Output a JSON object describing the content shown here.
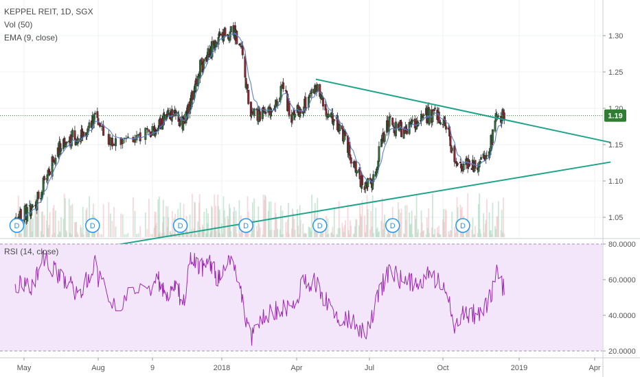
{
  "legend": {
    "symbol": "KEPPEL REIT, 1D, SGX",
    "volume": "Vol (50)",
    "ema": "EMA (9, close)",
    "rsi": "RSI (14, close)"
  },
  "current_price": "1.19",
  "colors": {
    "up": "#2f6b3a",
    "down": "#8b2431",
    "ema": "#5b7fd0",
    "trendline": "#1fa38a",
    "rsi_line": "#9c27b0",
    "rsi_band": "#f3e6fb",
    "price_tag": "#2e7d32",
    "dividend": "#2196f3"
  },
  "chart_data": [
    {
      "type": "candlestick",
      "x_tick_labels": [
        "May",
        "Aug",
        "9",
        "2018",
        "Apr",
        "Jul",
        "Oct",
        "2019",
        "Apr"
      ],
      "x_range": [
        "2017-04-18",
        "2019-04-20"
      ],
      "y_ticks": [
        "1.05",
        "1.10",
        "1.15",
        "1.20",
        "1.25",
        "1.30"
      ],
      "ylim": [
        1.01,
        1.345
      ],
      "last_price": 1.19,
      "price_path": [
        [
          "2017-04-20",
          1.05
        ],
        [
          "2017-05-10",
          1.06
        ],
        [
          "2017-05-20",
          1.08
        ],
        [
          "2017-06-10",
          1.14
        ],
        [
          "2017-06-25",
          1.16
        ],
        [
          "2017-07-15",
          1.16
        ],
        [
          "2017-07-27",
          1.19
        ],
        [
          "2017-08-08",
          1.15
        ],
        [
          "2017-08-20",
          1.16
        ],
        [
          "2017-09-05",
          1.17
        ],
        [
          "2017-09-15",
          1.18
        ],
        [
          "2017-10-05",
          1.19
        ],
        [
          "2017-10-25",
          1.18
        ],
        [
          "2017-11-05",
          1.2
        ],
        [
          "2017-11-20",
          1.25
        ],
        [
          "2017-12-05",
          1.27
        ],
        [
          "2017-12-20",
          1.29
        ],
        [
          "2018-01-05",
          1.3
        ],
        [
          "2018-01-15",
          1.31
        ],
        [
          "2018-01-25",
          1.28
        ],
        [
          "2018-02-05",
          1.19
        ],
        [
          "2018-02-20",
          1.19
        ],
        [
          "2018-03-05",
          1.2
        ],
        [
          "2018-03-15",
          1.23
        ],
        [
          "2018-03-25",
          1.19
        ],
        [
          "2018-04-05",
          1.2
        ],
        [
          "2018-04-15",
          1.21
        ],
        [
          "2018-04-25",
          1.23
        ],
        [
          "2018-05-05",
          1.2
        ],
        [
          "2018-05-20",
          1.18
        ],
        [
          "2018-06-01",
          1.16
        ],
        [
          "2018-06-12",
          1.12
        ],
        [
          "2018-06-25",
          1.09
        ],
        [
          "2018-07-05",
          1.1
        ],
        [
          "2018-07-15",
          1.15
        ],
        [
          "2018-07-25",
          1.18
        ],
        [
          "2018-08-10",
          1.17
        ],
        [
          "2018-08-25",
          1.18
        ],
        [
          "2018-09-10",
          1.19
        ],
        [
          "2018-09-25",
          1.19
        ],
        [
          "2018-10-05",
          1.18
        ],
        [
          "2018-10-15",
          1.13
        ],
        [
          "2018-10-25",
          1.12
        ],
        [
          "2018-11-05",
          1.12
        ],
        [
          "2018-11-15",
          1.12
        ],
        [
          "2018-11-25",
          1.14
        ],
        [
          "2018-12-05",
          1.19
        ],
        [
          "2018-12-15",
          1.19
        ]
      ],
      "trendlines": [
        {
          "from": [
            "2018-04-25",
            1.24
          ],
          "to": [
            "2019-04-20",
            1.153
          ]
        },
        {
          "from": [
            "2017-06-20",
            1.0
          ],
          "to": [
            "2019-04-20",
            1.126
          ]
        }
      ],
      "dividend_markers": {
        "label": "D",
        "dates": [
          "2017-04-22",
          "2017-07-25",
          "2017-10-20",
          "2018-01-30",
          "2018-04-30",
          "2018-07-30",
          "2018-10-25"
        ]
      }
    },
    {
      "type": "line",
      "title": "RSI (14, close)",
      "y_ticks": [
        "20.0000",
        "40.0000",
        "60.0000",
        "80.0000"
      ],
      "ylim": [
        18,
        82
      ],
      "band": [
        20,
        80
      ],
      "path": [
        [
          "2017-04-20",
          58
        ],
        [
          "2017-05-10",
          55
        ],
        [
          "2017-05-25",
          73
        ],
        [
          "2017-06-10",
          65
        ],
        [
          "2017-06-25",
          57
        ],
        [
          "2017-07-10",
          52
        ],
        [
          "2017-07-27",
          70
        ],
        [
          "2017-08-10",
          45
        ],
        [
          "2017-08-25",
          55
        ],
        [
          "2017-09-10",
          60
        ],
        [
          "2017-09-25",
          52
        ],
        [
          "2017-10-10",
          57
        ],
        [
          "2017-10-25",
          48
        ],
        [
          "2017-11-10",
          75
        ],
        [
          "2017-11-25",
          67
        ],
        [
          "2017-12-10",
          70
        ],
        [
          "2017-12-25",
          60
        ],
        [
          "2018-01-10",
          76
        ],
        [
          "2018-01-25",
          50
        ],
        [
          "2018-02-05",
          26
        ],
        [
          "2018-02-20",
          40
        ],
        [
          "2018-03-05",
          42
        ],
        [
          "2018-03-25",
          45
        ],
        [
          "2018-04-10",
          58
        ],
        [
          "2018-04-25",
          58
        ],
        [
          "2018-05-10",
          46
        ],
        [
          "2018-05-25",
          40
        ],
        [
          "2018-06-10",
          38
        ],
        [
          "2018-06-25",
          30
        ],
        [
          "2018-07-05",
          40
        ],
        [
          "2018-07-15",
          55
        ],
        [
          "2018-07-25",
          65
        ],
        [
          "2018-08-10",
          60
        ],
        [
          "2018-08-25",
          58
        ],
        [
          "2018-09-10",
          62
        ],
        [
          "2018-09-25",
          58
        ],
        [
          "2018-10-05",
          55
        ],
        [
          "2018-10-15",
          33
        ],
        [
          "2018-10-25",
          42
        ],
        [
          "2018-11-10",
          40
        ],
        [
          "2018-11-25",
          48
        ],
        [
          "2018-12-05",
          63
        ],
        [
          "2018-12-15",
          53
        ]
      ]
    }
  ]
}
